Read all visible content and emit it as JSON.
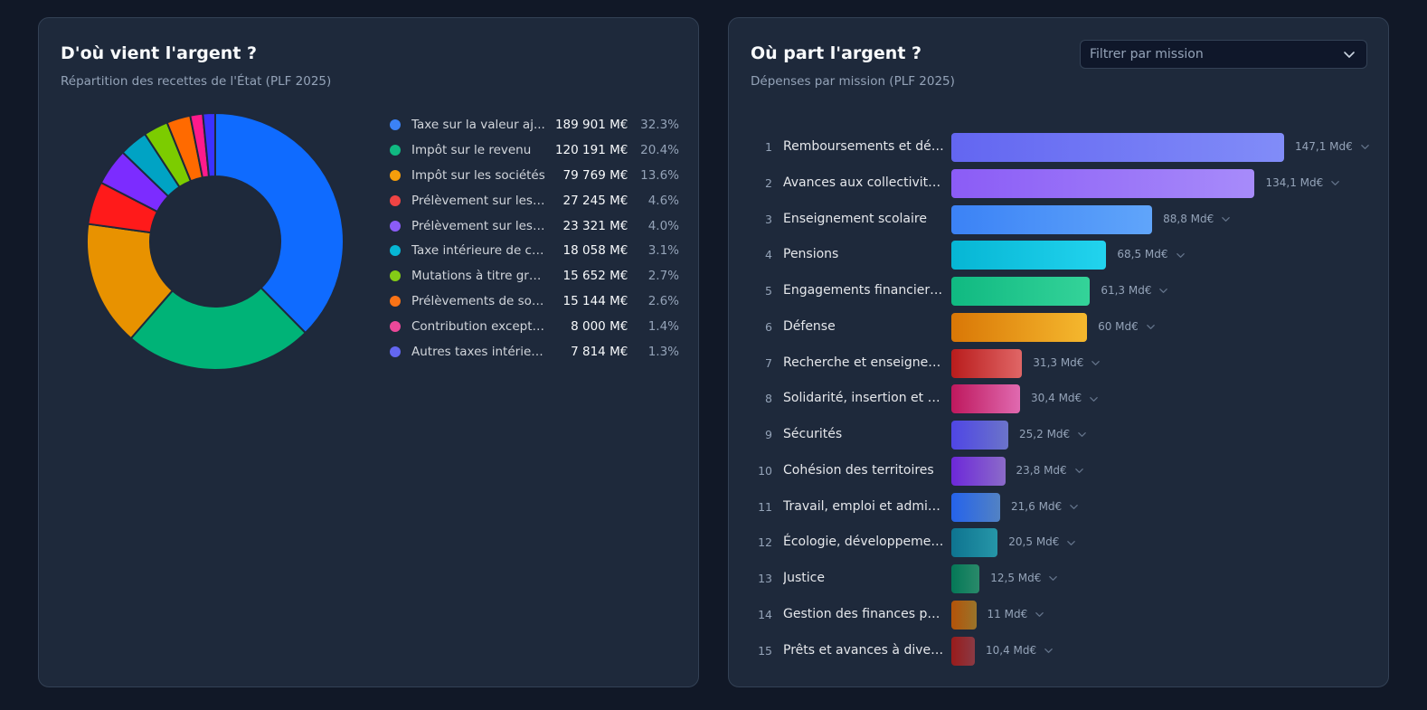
{
  "recettes": {
    "title": "D'où vient l'argent ?",
    "subtitle": "Répartition des recettes de l'État (PLF 2025)",
    "chart_data": {
      "type": "pie",
      "categories": [
        "Taxe sur la valeur aj...",
        "Impôt sur le revenu",
        "Impôt sur les sociétés",
        "Prélèvement sur les ...",
        "Prélèvement sur les ...",
        "Taxe intérieure de co...",
        "Mutations à titre gra...",
        "Prélèvements de soli...",
        "Contribution exceptio...",
        "Autres taxes intérieures"
      ],
      "values": [
        189901,
        120191,
        79769,
        27245,
        23321,
        18058,
        15652,
        15144,
        8000,
        7814
      ],
      "value_labels": [
        "189 901 M€",
        "120 191 M€",
        "79 769 M€",
        "27 245 M€",
        "23 321 M€",
        "18 058 M€",
        "15 652 M€",
        "15 144 M€",
        "8 000 M€",
        "7 814 M€"
      ],
      "percent_labels": [
        "32.3%",
        "20.4%",
        "13.6%",
        "4.6%",
        "4.0%",
        "3.1%",
        "2.7%",
        "2.6%",
        "1.4%",
        "1.3%"
      ],
      "legend_colors": [
        "#3b82f6",
        "#10b981",
        "#f59e0b",
        "#ef4444",
        "#8b5cf6",
        "#06b6d4",
        "#84cc16",
        "#f97316",
        "#ec4899",
        "#6366f1"
      ],
      "slice_colors": [
        "#0f6bff",
        "#00b377",
        "#e89200",
        "#ff1a1a",
        "#7c2cff",
        "#00a3c4",
        "#7ccc00",
        "#ff6a00",
        "#ff1a8c",
        "#3b32ff"
      ],
      "legend": "right"
    }
  },
  "depenses": {
    "title": "Où part l'argent ?",
    "subtitle": "Dépenses par mission (PLF 2025)",
    "filter": {
      "placeholder": "Filtrer par mission"
    },
    "chart_data": {
      "type": "bar",
      "orientation": "horizontal",
      "ranks": [
        "1",
        "2",
        "3",
        "4",
        "5",
        "6",
        "7",
        "8",
        "9",
        "10",
        "11",
        "12",
        "13",
        "14",
        "15"
      ],
      "categories": [
        "Remboursements et dég...",
        "Avances aux collectivités ...",
        "Enseignement scolaire",
        "Pensions",
        "Engagements financiers ...",
        "Défense",
        "Recherche et enseignem...",
        "Solidarité, insertion et ég...",
        "Sécurités",
        "Cohésion des territoires",
        "Travail, emploi et admini...",
        "Écologie, développemen...",
        "Justice",
        "Gestion des finances pu...",
        "Prêts et avances à divers..."
      ],
      "values": [
        147.1,
        134.1,
        88.8,
        68.5,
        61.3,
        60,
        31.3,
        30.4,
        25.2,
        23.8,
        21.6,
        20.5,
        12.5,
        11,
        10.4
      ],
      "value_labels": [
        "147,1 Md€",
        "134,1 Md€",
        "88,8 Md€",
        "68,5 Md€",
        "61,3 Md€",
        "60 Md€",
        "31,3 Md€",
        "30,4 Md€",
        "25,2 Md€",
        "23,8 Md€",
        "21,6 Md€",
        "20,5 Md€",
        "12,5 Md€",
        "11 Md€",
        "10,4 Md€"
      ],
      "colors": [
        [
          "#6366f1",
          "#818cf8"
        ],
        [
          "#8b5cf6",
          "#a78bfa"
        ],
        [
          "#3b82f6",
          "#60a5fa"
        ],
        [
          "#06b6d4",
          "#22d3ee"
        ],
        [
          "#10b981",
          "#34d399"
        ],
        [
          "#d97706",
          "#f5b82e"
        ],
        [
          "#b91c1c",
          "#e06666"
        ],
        [
          "#be185d",
          "#e06ab0"
        ],
        [
          "#4f46e5",
          "#6b74c9"
        ],
        [
          "#6d28d9",
          "#8b6bc9"
        ],
        [
          "#2563eb",
          "#5282c4"
        ],
        [
          "#0e7490",
          "#2696a8"
        ],
        [
          "#047857",
          "#2a8a6a"
        ],
        [
          "#b45309",
          "#9a742a"
        ],
        [
          "#991b1b",
          "#8a3a44"
        ]
      ]
    }
  }
}
